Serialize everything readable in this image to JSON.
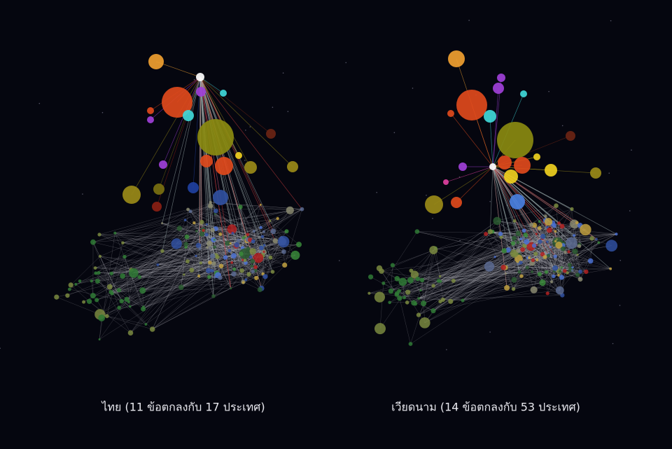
{
  "panels": [
    {
      "caption": "ไทย (11 ข้อตกลงกับ 17 ประเทศ)"
    },
    {
      "caption": "เวียดนาม (14 ข้อตกลงกับ 53 ประเทศ)"
    }
  ]
}
